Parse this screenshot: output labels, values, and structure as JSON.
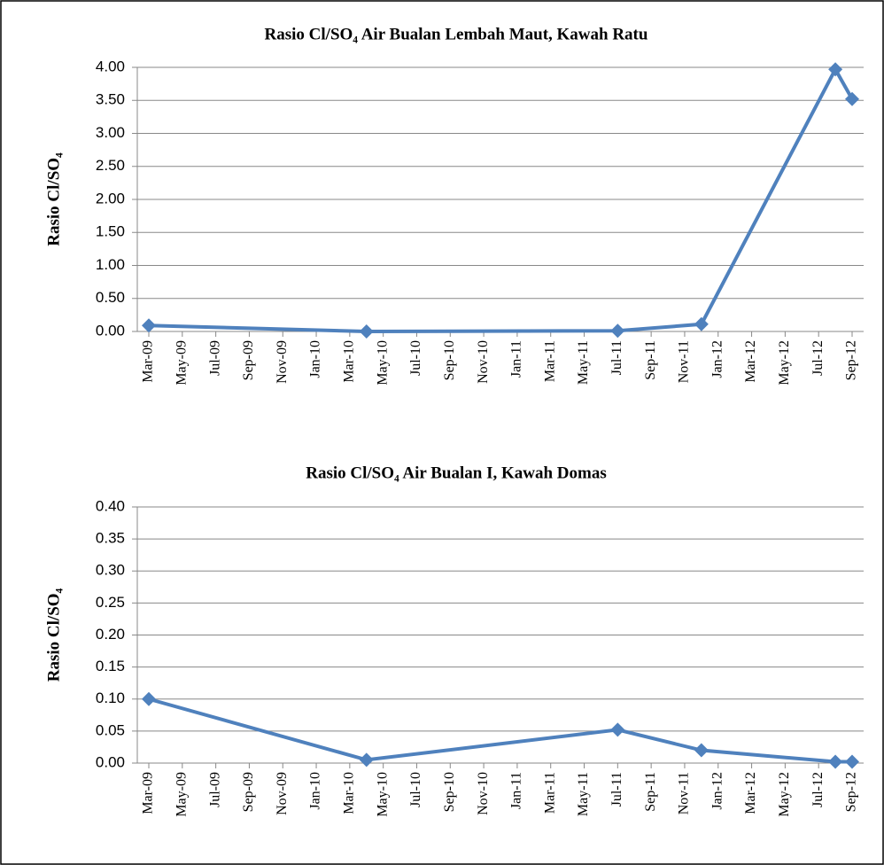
{
  "chart_data": [
    {
      "type": "line",
      "title": "Rasio Cl/SO₄ Air Bualan Lembah Maut, Kawah Ratu",
      "y_label": "Rasio Cl/SO₄",
      "xticks": [
        "Mar-09",
        "May-09",
        "Jul-09",
        "Sep-09",
        "Nov-09",
        "Jan-10",
        "Mar-10",
        "May-10",
        "Jul-10",
        "Sep-10",
        "Nov-10",
        "Jan-11",
        "Mar-11",
        "May-11",
        "Jul-11",
        "Sep-11",
        "Nov-11",
        "Jan-12",
        "Mar-12",
        "May-12",
        "Jul-12",
        "Sep-12"
      ],
      "x": [
        "Mar-09",
        "Apr-10",
        "Jul-11",
        "Dec-11",
        "Aug-12",
        "Sep-12"
      ],
      "series": [
        {
          "color": "#4f81bd",
          "values": [
            0.09,
            0.0,
            0.01,
            0.11,
            3.97,
            3.52
          ]
        }
      ],
      "ylim": [
        0,
        4
      ],
      "yticks": [
        {
          "value": 0,
          "label": "0.00"
        },
        {
          "value": 0.5,
          "label": "0.50"
        },
        {
          "value": 1,
          "label": "1.00"
        },
        {
          "value": 1.5,
          "label": "1.50"
        },
        {
          "value": 2,
          "label": "2.00"
        },
        {
          "value": 2.5,
          "label": "2.50"
        },
        {
          "value": 3,
          "label": "3.00"
        },
        {
          "value": 3.5,
          "label": "3.50"
        },
        {
          "value": 4,
          "label": "4.00"
        }
      ],
      "grid": true
    },
    {
      "type": "line",
      "title": "Rasio Cl/SO₄ Air Bualan I, Kawah Domas",
      "y_label": "Rasio Cl/SO₄",
      "xticks": [
        "Mar-09",
        "May-09",
        "Jul-09",
        "Sep-09",
        "Nov-09",
        "Jan-10",
        "Mar-10",
        "May-10",
        "Jul-10",
        "Sep-10",
        "Nov-10",
        "Jan-11",
        "Mar-11",
        "May-11",
        "Jul-11",
        "Sep-11",
        "Nov-11",
        "Jan-12",
        "Mar-12",
        "May-12",
        "Jul-12",
        "Sep-12"
      ],
      "x": [
        "Mar-09",
        "Apr-10",
        "Jul-11",
        "Dec-11",
        "Aug-12",
        "Sep-12"
      ],
      "series": [
        {
          "color": "#4f81bd",
          "values": [
            0.1,
            0.005,
            0.052,
            0.02,
            0.002,
            0.002
          ]
        }
      ],
      "ylim": [
        0,
        0.4
      ],
      "yticks": [
        {
          "value": 0,
          "label": "0.00"
        },
        {
          "value": 0.05,
          "label": "0.05"
        },
        {
          "value": 0.1,
          "label": "0.10"
        },
        {
          "value": 0.15,
          "label": "0.15"
        },
        {
          "value": 0.2,
          "label": "0.20"
        },
        {
          "value": 0.25,
          "label": "0.25"
        },
        {
          "value": 0.3,
          "label": "0.30"
        },
        {
          "value": 0.35,
          "label": "0.35"
        },
        {
          "value": 0.4,
          "label": "0.40"
        }
      ],
      "grid": true
    }
  ]
}
